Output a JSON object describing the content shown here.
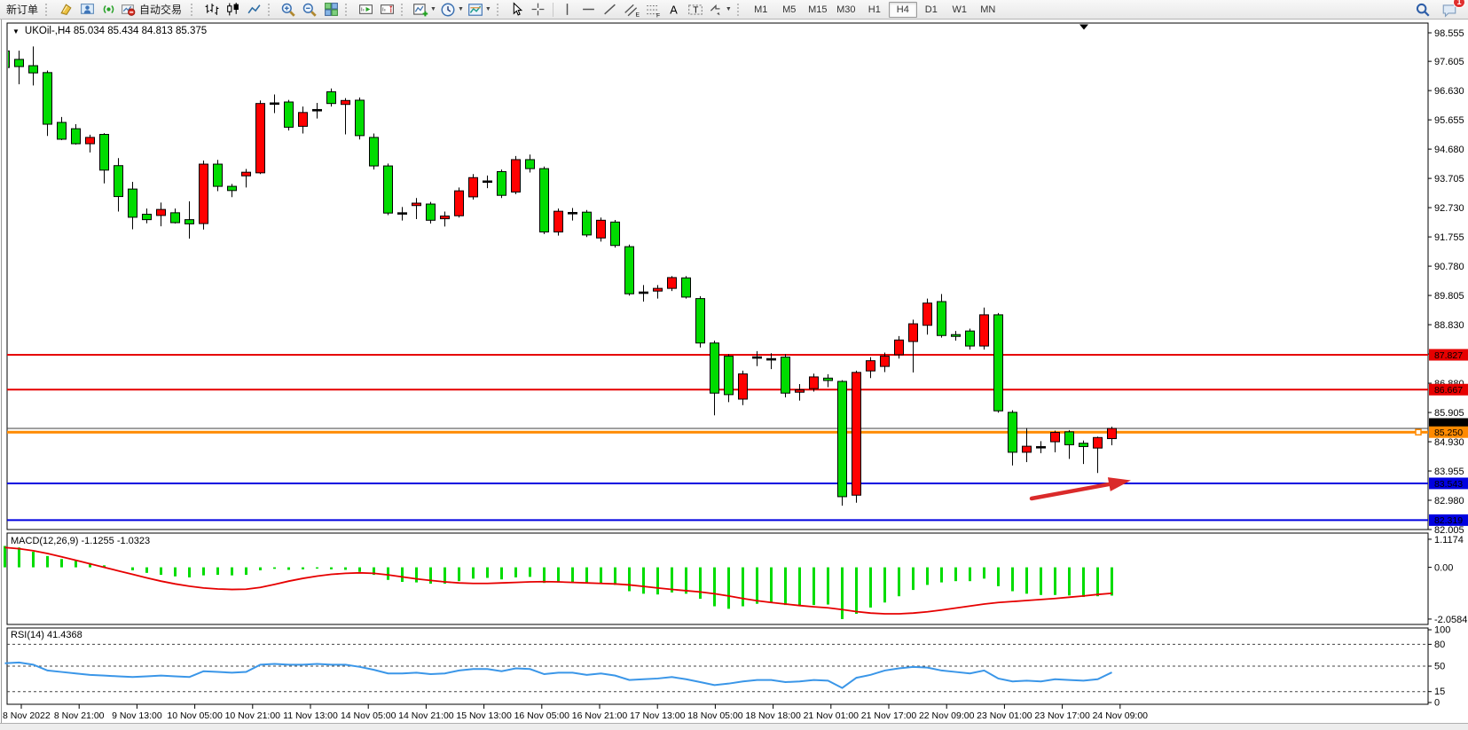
{
  "toolbar": {
    "new_order": "新订单",
    "autotrade": "自动交易",
    "timeframe_labels": [
      "M1",
      "M5",
      "M15",
      "M30",
      "H1",
      "H4",
      "D1",
      "W1",
      "MN"
    ],
    "active_timeframe": "H4",
    "notification_badge": "1",
    "icons": [
      "gold-document-icon",
      "user-window-icon",
      "broadcast-icon",
      "autotrade-icon",
      "bar-chart-icon",
      "candlestick-chart-icon",
      "line-chart-icon",
      "zoom-in-icon",
      "zoom-out-icon",
      "tile-windows-icon",
      "auto-scroll-icon",
      "chart-shift-icon",
      "indicators-icon",
      "periods-icon",
      "templates-icon",
      "cursor-icon",
      "crosshair-icon",
      "vertical-line-icon",
      "horizontal-line-icon",
      "trendline-icon",
      "equidistant-channel-icon",
      "fibonacci-icon",
      "text-icon",
      "text-label-icon",
      "shapes-icon",
      "search-icon",
      "chat-icon"
    ]
  },
  "chart": {
    "dropdown_marker": "▼",
    "symbol_period": "UKOil-,H4",
    "ohlc": "85.034 85.434 84.813 85.375",
    "macd_label": "MACD(12,26,9) -1.1255 -1.0323",
    "rsi_label": "RSI(14) 41.4368"
  },
  "chart_data": {
    "type": "candlestick",
    "symbol": "UKOil-",
    "period": "H4",
    "last_ohlc": {
      "open": 85.034,
      "high": 85.434,
      "low": 84.813,
      "close": 85.375
    },
    "price_axis": {
      "max": 98.555,
      "min": 82.005,
      "ticks": [
        "98.555",
        "97.605",
        "96.630",
        "95.655",
        "94.680",
        "93.705",
        "92.730",
        "91.755",
        "90.780",
        "89.805",
        "88.830",
        "87.855",
        "86.880",
        "85.905",
        "84.930",
        "83.955",
        "82.980",
        "82.005"
      ]
    },
    "time_axis": [
      "8 Nov 2022",
      "8 Nov 21:00",
      "9 Nov 13:00",
      "10 Nov 05:00",
      "10 Nov 21:00",
      "11 Nov 13:00",
      "14 Nov 05:00",
      "14 Nov 21:00",
      "15 Nov 13:00",
      "16 Nov 05:00",
      "16 Nov 21:00",
      "17 Nov 13:00",
      "18 Nov 05:00",
      "18 Nov 18:00",
      "21 Nov 01:00",
      "21 Nov 17:00",
      "22 Nov 09:00",
      "23 Nov 01:00",
      "23 Nov 17:00",
      "24 Nov 09:00"
    ],
    "h_lines": [
      {
        "price": 87.827,
        "label": "87.827",
        "color": "#e60000",
        "width": 2
      },
      {
        "price": 86.667,
        "label": "86.667",
        "color": "#e60000",
        "width": 2
      },
      {
        "price": 85.375,
        "label": "85.375",
        "color": "#404040",
        "width": 1,
        "bid_marker": true
      },
      {
        "price": 85.25,
        "label": "85.250",
        "color": "#ff8a00",
        "width": 3
      },
      {
        "price": 83.543,
        "label": "83.543",
        "color": "#0000e0",
        "width": 2
      },
      {
        "price": 82.319,
        "label": "82.319",
        "color": "#0000e0",
        "width": 2
      }
    ],
    "candles": [
      [
        97.95,
        98.08,
        97.28,
        97.4
      ],
      [
        97.67,
        97.96,
        96.84,
        97.43
      ],
      [
        97.46,
        98.1,
        96.8,
        97.22
      ],
      [
        97.23,
        97.3,
        95.12,
        95.51
      ],
      [
        95.57,
        95.75,
        94.98,
        95.01
      ],
      [
        95.36,
        95.51,
        94.83,
        94.86
      ],
      [
        94.86,
        95.16,
        94.57,
        95.07
      ],
      [
        95.17,
        95.21,
        93.54,
        93.98
      ],
      [
        94.13,
        94.38,
        92.6,
        93.1
      ],
      [
        93.35,
        93.59,
        92.01,
        92.41
      ],
      [
        92.51,
        92.7,
        92.21,
        92.33
      ],
      [
        92.47,
        92.9,
        92.11,
        92.67
      ],
      [
        92.56,
        92.7,
        92.2,
        92.23
      ],
      [
        92.33,
        92.94,
        91.7,
        92.19
      ],
      [
        92.2,
        94.3,
        92.0,
        94.18
      ],
      [
        94.18,
        94.32,
        93.28,
        93.44
      ],
      [
        93.44,
        93.52,
        93.08,
        93.3
      ],
      [
        93.79,
        94.02,
        93.4,
        93.91
      ],
      [
        93.89,
        96.3,
        93.85,
        96.2
      ],
      [
        96.18,
        96.5,
        95.88,
        96.22
      ],
      [
        96.25,
        96.32,
        95.3,
        95.41
      ],
      [
        95.44,
        96.1,
        95.2,
        95.9
      ],
      [
        95.96,
        96.22,
        95.7,
        96.0
      ],
      [
        96.59,
        96.7,
        96.1,
        96.2
      ],
      [
        96.17,
        96.38,
        95.17,
        96.3
      ],
      [
        96.31,
        96.4,
        95.0,
        95.13
      ],
      [
        95.07,
        95.2,
        94.0,
        94.12
      ],
      [
        94.12,
        94.2,
        92.48,
        92.55
      ],
      [
        92.52,
        92.75,
        92.3,
        92.56
      ],
      [
        92.8,
        93.05,
        92.35,
        92.88
      ],
      [
        92.85,
        92.92,
        92.2,
        92.31
      ],
      [
        92.36,
        92.6,
        92.1,
        92.45
      ],
      [
        92.46,
        93.4,
        92.4,
        93.29
      ],
      [
        93.09,
        93.85,
        93.0,
        93.73
      ],
      [
        93.58,
        93.8,
        93.38,
        93.62
      ],
      [
        93.93,
        94.0,
        93.05,
        93.14
      ],
      [
        93.25,
        94.45,
        93.18,
        94.33
      ],
      [
        94.33,
        94.5,
        93.9,
        94.03
      ],
      [
        94.03,
        94.1,
        91.85,
        91.92
      ],
      [
        91.92,
        92.7,
        91.8,
        92.61
      ],
      [
        92.53,
        92.72,
        92.3,
        92.57
      ],
      [
        92.58,
        92.65,
        91.75,
        91.82
      ],
      [
        91.72,
        92.4,
        91.6,
        92.31
      ],
      [
        92.25,
        92.32,
        91.4,
        91.47
      ],
      [
        91.43,
        91.5,
        89.8,
        89.86
      ],
      [
        89.88,
        90.15,
        89.6,
        89.92
      ],
      [
        89.95,
        90.15,
        89.7,
        90.04
      ],
      [
        90.04,
        90.45,
        89.95,
        90.4
      ],
      [
        90.39,
        90.45,
        89.7,
        89.75
      ],
      [
        89.7,
        89.78,
        88.07,
        88.22
      ],
      [
        88.22,
        88.3,
        85.81,
        86.55
      ],
      [
        87.78,
        87.85,
        86.25,
        86.5
      ],
      [
        86.35,
        87.3,
        86.15,
        87.19
      ],
      [
        87.72,
        87.95,
        87.45,
        87.76
      ],
      [
        87.66,
        87.88,
        87.35,
        87.7
      ],
      [
        87.75,
        87.85,
        86.41,
        86.55
      ],
      [
        86.58,
        86.85,
        86.3,
        86.66
      ],
      [
        86.7,
        87.2,
        86.6,
        87.09
      ],
      [
        87.05,
        87.18,
        86.75,
        86.97
      ],
      [
        86.94,
        86.98,
        82.8,
        83.1
      ],
      [
        83.15,
        87.3,
        82.9,
        87.24
      ],
      [
        87.29,
        87.75,
        87.05,
        87.63
      ],
      [
        87.44,
        87.9,
        87.25,
        87.78
      ],
      [
        87.83,
        88.45,
        87.7,
        88.32
      ],
      [
        88.27,
        89.0,
        87.24,
        88.86
      ],
      [
        88.81,
        89.7,
        88.5,
        89.55
      ],
      [
        89.6,
        89.85,
        88.4,
        88.47
      ],
      [
        88.5,
        88.62,
        88.3,
        88.44
      ],
      [
        88.62,
        88.7,
        88.0,
        88.12
      ],
      [
        88.12,
        89.4,
        88.0,
        89.16
      ],
      [
        89.16,
        89.22,
        85.9,
        85.96
      ],
      [
        85.91,
        85.98,
        84.14,
        84.58
      ],
      [
        84.58,
        85.39,
        84.25,
        84.78
      ],
      [
        84.73,
        84.95,
        84.55,
        84.77
      ],
      [
        84.93,
        85.3,
        84.58,
        85.24
      ],
      [
        85.26,
        85.32,
        84.36,
        84.83
      ],
      [
        84.88,
        84.97,
        84.19,
        84.77
      ],
      [
        84.72,
        85.1,
        83.89,
        85.07
      ],
      [
        85.034,
        85.434,
        84.813,
        85.375
      ]
    ],
    "macd": {
      "label": "MACD(12,26,9) -1.1255 -1.0323",
      "axis": [
        {
          "t": "1.1174",
          "v": 1.1174
        },
        {
          "t": "0.00",
          "v": 0
        },
        {
          "t": "-2.0584",
          "v": -2.0584
        }
      ],
      "histogram": [
        0.85,
        0.79,
        0.62,
        0.45,
        0.33,
        0.26,
        0.17,
        0.08,
        0,
        -0.12,
        -0.22,
        -0.3,
        -0.36,
        -0.4,
        -0.32,
        -0.3,
        -0.32,
        -0.3,
        -0.12,
        -0.06,
        -0.1,
        -0.08,
        -0.05,
        -0.08,
        -0.1,
        -0.18,
        -0.3,
        -0.5,
        -0.58,
        -0.6,
        -0.65,
        -0.65,
        -0.55,
        -0.45,
        -0.42,
        -0.48,
        -0.4,
        -0.38,
        -0.62,
        -0.6,
        -0.6,
        -0.65,
        -0.62,
        -0.7,
        -0.95,
        -1.05,
        -1.08,
        -1.0,
        -1.05,
        -1.25,
        -1.55,
        -1.65,
        -1.55,
        -1.45,
        -1.4,
        -1.5,
        -1.55,
        -1.5,
        -1.48,
        -2.0584,
        -1.85,
        -1.6,
        -1.4,
        -1.15,
        -0.9,
        -0.7,
        -0.6,
        -0.55,
        -0.55,
        -0.45,
        -0.75,
        -0.95,
        -1.05,
        -1.1,
        -1.1,
        -1.12,
        -1.18,
        -1.15,
        -1.1255
      ],
      "signal": [
        0.79,
        0.74,
        0.66,
        0.55,
        0.42,
        0.28,
        0.14,
        0,
        -0.14,
        -0.28,
        -0.42,
        -0.55,
        -0.66,
        -0.75,
        -0.82,
        -0.86,
        -0.88,
        -0.87,
        -0.8,
        -0.68,
        -0.55,
        -0.44,
        -0.35,
        -0.28,
        -0.24,
        -0.22,
        -0.24,
        -0.3,
        -0.38,
        -0.46,
        -0.52,
        -0.58,
        -0.62,
        -0.64,
        -0.64,
        -0.62,
        -0.6,
        -0.58,
        -0.57,
        -0.58,
        -0.6,
        -0.62,
        -0.64,
        -0.66,
        -0.7,
        -0.76,
        -0.82,
        -0.88,
        -0.93,
        -0.98,
        -1.05,
        -1.14,
        -1.24,
        -1.33,
        -1.4,
        -1.46,
        -1.52,
        -1.57,
        -1.61,
        -1.68,
        -1.76,
        -1.82,
        -1.85,
        -1.85,
        -1.82,
        -1.77,
        -1.7,
        -1.62,
        -1.54,
        -1.46,
        -1.4,
        -1.36,
        -1.32,
        -1.28,
        -1.24,
        -1.19,
        -1.14,
        -1.08,
        -1.0323
      ]
    },
    "rsi": {
      "label": "RSI(14) 41.4368",
      "current": 41.4368,
      "levels": [
        80,
        50,
        15
      ],
      "axis_labels": [
        {
          "t": "100",
          "v": 100
        },
        {
          "t": "80",
          "v": 80
        },
        {
          "t": "50",
          "v": 50
        },
        {
          "t": "15",
          "v": 15
        },
        {
          "t": "0",
          "v": 0
        }
      ],
      "values": [
        54,
        55,
        52,
        44,
        42,
        40,
        38,
        37,
        36,
        35,
        36,
        37,
        36,
        35,
        43,
        42,
        41,
        42,
        52,
        53,
        52,
        52,
        53,
        52,
        52,
        49,
        45,
        40,
        40,
        41,
        39,
        40,
        44,
        46,
        46,
        43,
        47,
        46,
        39,
        41,
        41,
        38,
        40,
        37,
        31,
        32,
        33,
        35,
        32,
        28,
        24,
        26,
        29,
        31,
        31,
        28,
        29,
        31,
        30,
        20,
        34,
        38,
        44,
        47,
        49,
        48,
        44,
        42,
        40,
        44,
        33,
        29,
        30,
        29,
        32,
        31,
        30,
        32,
        41.4
      ]
    },
    "annotation_arrow": {
      "from": [
        1163,
        562
      ],
      "to": [
        1272,
        542
      ],
      "color": "#da2a2a"
    },
    "colors": {
      "up": "#ff0000",
      "down": "#00dc00",
      "doji": "#000000",
      "wick": "#000000",
      "macd_bar": "#00dc00",
      "macd_signal": "#e60000",
      "rsi_line": "#3a96e8"
    }
  }
}
